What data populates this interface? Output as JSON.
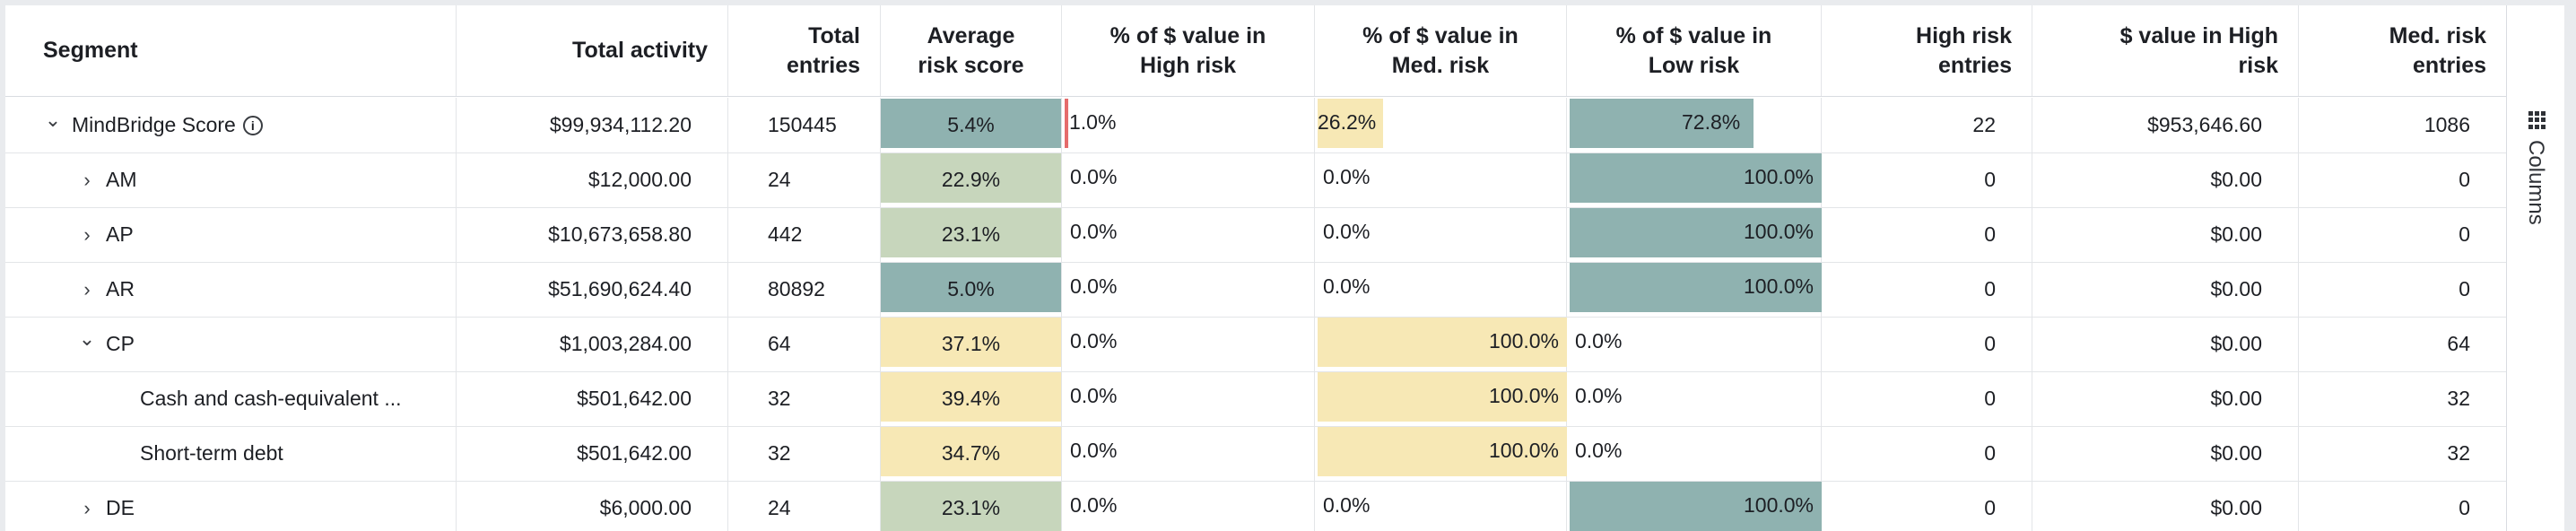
{
  "colors": {
    "high_bar": "#e56b6b",
    "med_bar": "#f7e8b5",
    "low_bar": "#8fb2b0",
    "avg_low": "#8fb2b0",
    "avg_mid": "#c7d6bc",
    "avg_med": "#f7e8b5",
    "grid_line": "#e3e5e8"
  },
  "headers": {
    "segment": "Segment",
    "total_activity": "Total activity",
    "total_entries_1": "Total",
    "total_entries_2": "entries",
    "avg_risk_1": "Average",
    "avg_risk_2": "risk score",
    "pct_high_1": "% of $ value in",
    "pct_high_2": "High risk",
    "pct_med_1": "% of $ value in",
    "pct_med_2": "Med. risk",
    "pct_low_1": "% of $ value in",
    "pct_low_2": "Low risk",
    "high_entries_1": "High risk",
    "high_entries_2": "entries",
    "value_high_1": "$ value in High",
    "value_high_2": "risk",
    "med_entries_1": "Med. risk",
    "med_entries_2": "entries"
  },
  "rows": [
    {
      "segment": "MindBridge Score",
      "indent": 0,
      "chevron": "down",
      "info": "i",
      "total_activity": "$99,934,112.20",
      "total_entries": "150445",
      "avg_risk": "5.4%",
      "avg_level": 0.054,
      "pct_high": "1.0%",
      "pct_high_v": 0.01,
      "pct_med": "26.2%",
      "pct_med_v": 0.262,
      "pct_low": "72.8%",
      "pct_low_v": 0.728,
      "high_entries": "22",
      "value_high": "$953,646.60",
      "med_entries": "1086"
    },
    {
      "segment": "AM",
      "indent": 1,
      "chevron": "right",
      "total_activity": "$12,000.00",
      "total_entries": "24",
      "avg_risk": "22.9%",
      "avg_level": 0.229,
      "pct_high": "0.0%",
      "pct_high_v": 0,
      "pct_med": "0.0%",
      "pct_med_v": 0,
      "pct_low": "100.0%",
      "pct_low_v": 1,
      "high_entries": "0",
      "value_high": "$0.00",
      "med_entries": "0"
    },
    {
      "segment": "AP",
      "indent": 1,
      "chevron": "right",
      "total_activity": "$10,673,658.80",
      "total_entries": "442",
      "avg_risk": "23.1%",
      "avg_level": 0.231,
      "pct_high": "0.0%",
      "pct_high_v": 0,
      "pct_med": "0.0%",
      "pct_med_v": 0,
      "pct_low": "100.0%",
      "pct_low_v": 1,
      "high_entries": "0",
      "value_high": "$0.00",
      "med_entries": "0"
    },
    {
      "segment": "AR",
      "indent": 1,
      "chevron": "right",
      "total_activity": "$51,690,624.40",
      "total_entries": "80892",
      "avg_risk": "5.0%",
      "avg_level": 0.05,
      "pct_high": "0.0%",
      "pct_high_v": 0,
      "pct_med": "0.0%",
      "pct_med_v": 0,
      "pct_low": "100.0%",
      "pct_low_v": 1,
      "high_entries": "0",
      "value_high": "$0.00",
      "med_entries": "0"
    },
    {
      "segment": "CP",
      "indent": 1,
      "chevron": "down",
      "total_activity": "$1,003,284.00",
      "total_entries": "64",
      "avg_risk": "37.1%",
      "avg_level": 0.371,
      "pct_high": "0.0%",
      "pct_high_v": 0,
      "pct_med": "100.0%",
      "pct_med_v": 1,
      "pct_low": "0.0%",
      "pct_low_v": 0,
      "high_entries": "0",
      "value_high": "$0.00",
      "med_entries": "64"
    },
    {
      "segment": "Cash and cash-equivalent ...",
      "indent": 2,
      "chevron": "",
      "total_activity": "$501,642.00",
      "total_entries": "32",
      "avg_risk": "39.4%",
      "avg_level": 0.394,
      "pct_high": "0.0%",
      "pct_high_v": 0,
      "pct_med": "100.0%",
      "pct_med_v": 1,
      "pct_low": "0.0%",
      "pct_low_v": 0,
      "high_entries": "0",
      "value_high": "$0.00",
      "med_entries": "32"
    },
    {
      "segment": "Short-term debt",
      "indent": 2,
      "chevron": "",
      "total_activity": "$501,642.00",
      "total_entries": "32",
      "avg_risk": "34.7%",
      "avg_level": 0.347,
      "pct_high": "0.0%",
      "pct_high_v": 0,
      "pct_med": "100.0%",
      "pct_med_v": 1,
      "pct_low": "0.0%",
      "pct_low_v": 0,
      "high_entries": "0",
      "value_high": "$0.00",
      "med_entries": "32"
    },
    {
      "segment": "DE",
      "indent": 1,
      "chevron": "right",
      "total_activity": "$6,000.00",
      "total_entries": "24",
      "avg_risk": "23.1%",
      "avg_level": 0.231,
      "pct_high": "0.0%",
      "pct_high_v": 0,
      "pct_med": "0.0%",
      "pct_med_v": 0,
      "pct_low": "100.0%",
      "pct_low_v": 1,
      "high_entries": "0",
      "value_high": "$0.00",
      "med_entries": "0"
    }
  ],
  "sidebar": {
    "columns_label": "Columns",
    "grip_icon": "grid-icon"
  }
}
